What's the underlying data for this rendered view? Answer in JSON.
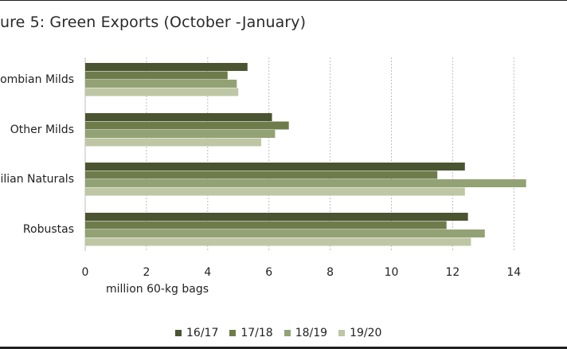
{
  "title": "ure 5: Green Exports (October -January)",
  "chart_data": {
    "type": "bar",
    "orientation": "horizontal",
    "categories": [
      "ombian Milds",
      "Other Milds",
      "ilian Naturals",
      "Robustas"
    ],
    "series": [
      {
        "name": "16/17",
        "color": "#4b5431",
        "values": [
          5.3,
          6.1,
          12.4,
          12.5
        ]
      },
      {
        "name": "17/18",
        "color": "#6e7c4c",
        "values": [
          4.65,
          6.65,
          11.5,
          11.8
        ]
      },
      {
        "name": "18/19",
        "color": "#93a274",
        "values": [
          4.95,
          6.2,
          14.4,
          13.05
        ]
      },
      {
        "name": "19/20",
        "color": "#bec6a4",
        "values": [
          5.0,
          5.75,
          12.4,
          12.6
        ]
      }
    ],
    "xlim": [
      0,
      15
    ],
    "xticks": [
      0,
      2,
      4,
      6,
      8,
      10,
      12,
      14
    ],
    "xlabel": "million 60-kg bags",
    "grid": "vertical dashed",
    "legend_position": "bottom"
  }
}
